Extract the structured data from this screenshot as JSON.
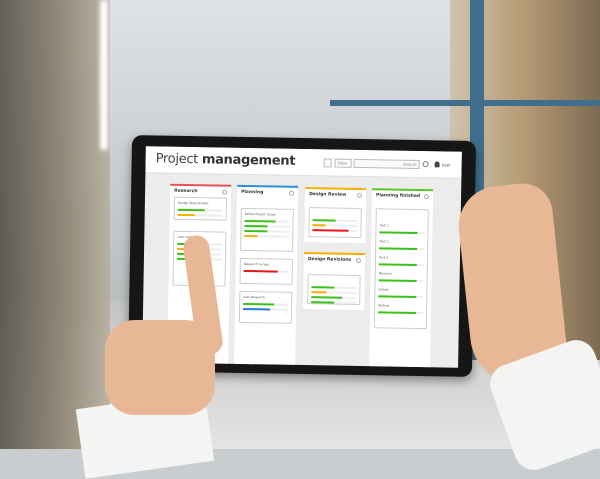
{
  "app": {
    "title_light": "Project",
    "title_bold": "management",
    "filter": "Filter",
    "search_placeholder": "Search",
    "user": "User"
  },
  "colors": {
    "green": "#3cc21c",
    "orange": "#f5b000",
    "red": "#e8161c",
    "blue": "#2a7bd4",
    "research": "#e8505a",
    "planning": "#2f8fd8",
    "review": "#f5b000",
    "finished": "#52c72a"
  },
  "columns": [
    {
      "name": "Research",
      "color": "#e8505a",
      "cards": [
        {
          "title": "Design Requirement",
          "bars": [
            {
              "v": 0.7,
              "c": "#3cc21c"
            },
            {
              "v": 0.45,
              "c": "#f5b000"
            }
          ]
        },
        {
          "title": "User Interviews",
          "bars": [
            {
              "v": 0.6,
              "c": "#3cc21c"
            },
            {
              "v": 0.5,
              "c": "#f5b000"
            },
            {
              "v": 0.55,
              "c": "#3cc21c"
            },
            {
              "v": 0.5,
              "c": "#3cc21c"
            }
          ]
        }
      ]
    },
    {
      "name": "Planning",
      "color": "#2f8fd8",
      "cards": [
        {
          "title": "Define Project Scope",
          "bars": [
            {
              "v": 0.8,
              "c": "#3cc21c"
            },
            {
              "v": 0.6,
              "c": "#3cc21c"
            },
            {
              "v": 0.6,
              "c": "#3cc21c"
            },
            {
              "v": 0.35,
              "c": "#f5b000"
            }
          ]
        },
        {
          "title": "Research Survey",
          "bars": [
            {
              "v": 0.9,
              "c": "#e8161c"
            }
          ]
        },
        {
          "title": "User Research",
          "bars": [
            {
              "v": 0.8,
              "c": "#3cc21c"
            },
            {
              "v": 0.7,
              "c": "#2a7bd4"
            }
          ]
        }
      ]
    },
    {
      "name": "Design Review",
      "color": "#f5b000",
      "cards": [
        {
          "title": "",
          "bars": [
            {
              "v": 0.6,
              "c": "#3cc21c"
            },
            {
              "v": 0.35,
              "c": "#f5b000"
            },
            {
              "v": 0.95,
              "c": "#e8161c"
            }
          ]
        }
      ]
    },
    {
      "name": "Design Revisions",
      "color": "#f5b000",
      "cards": [
        {
          "title": "",
          "bars": [
            {
              "v": 0.6,
              "c": "#3cc21c"
            },
            {
              "v": 0.38,
              "c": "#f5b000"
            },
            {
              "v": 0.8,
              "c": "#3cc21c"
            },
            {
              "v": 0.6,
              "c": "#3cc21c"
            }
          ]
        }
      ]
    },
    {
      "name": "Planning finished",
      "color": "#52c72a",
      "cards": [
        {
          "title": "",
          "bars": [
            {
              "l": "Task 1",
              "v": 1,
              "c": "#3cc21c"
            },
            {
              "l": "Task 2",
              "v": 1,
              "c": "#3cc21c"
            },
            {
              "l": "Task 3",
              "v": 1,
              "c": "#3cc21c"
            },
            {
              "l": "Measure",
              "v": 1,
              "c": "#3cc21c"
            },
            {
              "l": "Design",
              "v": 1,
              "c": "#3cc21c"
            },
            {
              "l": "Testing",
              "v": 1,
              "c": "#3cc21c"
            }
          ]
        }
      ]
    }
  ]
}
